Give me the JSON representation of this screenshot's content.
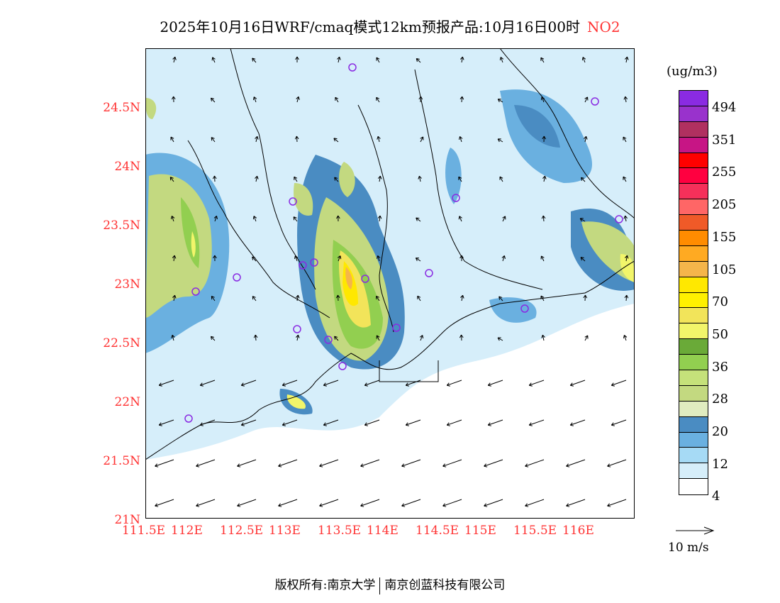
{
  "title": {
    "main": "2025年10月16日WRF/cmaq模式12km预报产品:10月16日00时",
    "species": "NO2"
  },
  "lon_ticks": [
    "111.5E",
    "112E",
    "112.5E",
    "113E",
    "113.5E",
    "114E",
    "114.5E",
    "115E",
    "115.5E",
    "116E"
  ],
  "lat_ticks": [
    "24.5N",
    "24N",
    "23.5N",
    "23N",
    "22.5N",
    "22N",
    "21.5N",
    "21N"
  ],
  "colorbar": {
    "unit": "(ug/m3)",
    "colors": [
      "#8a2be2",
      "#9932cc",
      "#b03060",
      "#c71585",
      "#ff0000",
      "#ff0040",
      "#f5305a",
      "#ff6666",
      "#f05a28",
      "#ff8c00",
      "#ffaa22",
      "#f5b54a",
      "#ffe800",
      "#fff000",
      "#f2e45a",
      "#f2f56a",
      "#6aaa38",
      "#92cf50",
      "#c5e17a",
      "#c3d980",
      "#e0ecc0",
      "#4a8cc2",
      "#6ab0e0",
      "#a6daf5",
      "#d6eefa",
      "#ffffff"
    ],
    "labels": [
      "494",
      "351",
      "255",
      "205",
      "155",
      "105",
      "70",
      "50",
      "36",
      "28",
      "20",
      "12",
      "4"
    ]
  },
  "wind_ref": "10 m/s",
  "footer": {
    "left": "版权所有:南京大学",
    "right": "南京创蓝科技有限公司"
  }
}
